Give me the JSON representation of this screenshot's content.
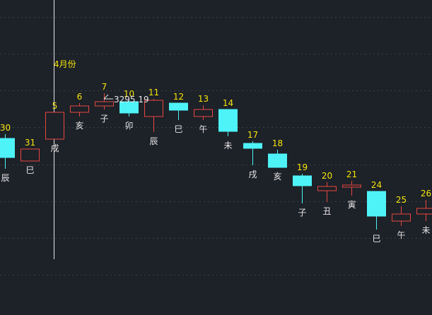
{
  "colors": {
    "background": "#1d2128",
    "up": "#e8473f",
    "down": "#4df3f7",
    "date_label": "#f5e50a",
    "branch_label": "#e6e6e6",
    "marker_line": "#e6e6e6",
    "grid": "#3a4048"
  },
  "annotation": {
    "month_text": "4月份",
    "price_text": "3295.19"
  },
  "chart_data": {
    "type": "candlestick",
    "grid": true,
    "ylim": [
      0,
      446
    ],
    "candles": [
      {
        "date": "30",
        "branch": "辰",
        "open": 250,
        "close": 223,
        "high": 256,
        "low": 207
      },
      {
        "date": "31",
        "branch": "巳",
        "open": 218,
        "close": 235,
        "high": 235,
        "low": 218
      },
      {
        "date": "5",
        "branch": "戌",
        "open": 249,
        "close": 287,
        "high": 287,
        "low": 249
      },
      {
        "date": "6",
        "branch": "亥",
        "open": 287,
        "close": 296,
        "high": 300,
        "low": 281
      },
      {
        "date": "7",
        "branch": "子",
        "open": 296,
        "close": 302,
        "high": 314,
        "low": 291
      },
      {
        "date": "10",
        "branch": "卯",
        "open": 302,
        "close": 286,
        "high": 304,
        "low": 281
      },
      {
        "date": "11",
        "branch": "辰",
        "open": 281,
        "close": 304,
        "high": 306,
        "low": 259
      },
      {
        "date": "12",
        "branch": "巳",
        "open": 300,
        "close": 290,
        "high": 300,
        "low": 276
      },
      {
        "date": "13",
        "branch": "午",
        "open": 281,
        "close": 291,
        "high": 297,
        "low": 276
      },
      {
        "date": "14",
        "branch": "未",
        "open": 291,
        "close": 260,
        "high": 291,
        "low": 253
      },
      {
        "date": "17",
        "branch": "戌",
        "open": 243,
        "close": 236,
        "high": 246,
        "low": 212
      },
      {
        "date": "18",
        "branch": "亥",
        "open": 228,
        "close": 209,
        "high": 234,
        "low": 209
      },
      {
        "date": "19",
        "branch": "子",
        "open": 197,
        "close": 183,
        "high": 200,
        "low": 158
      },
      {
        "date": "20",
        "branch": "丑",
        "open": 176,
        "close": 182,
        "high": 188,
        "low": 160
      },
      {
        "date": "21",
        "branch": "寅",
        "open": 181,
        "close": 184,
        "high": 190,
        "low": 169
      },
      {
        "date": "24",
        "branch": "巳",
        "open": 175,
        "close": 140,
        "high": 175,
        "low": 121
      },
      {
        "date": "25",
        "branch": "午",
        "open": 133,
        "close": 143,
        "high": 154,
        "low": 126
      },
      {
        "date": "26",
        "branch": "未",
        "open": 143,
        "close": 151,
        "high": 163,
        "low": 133
      }
    ]
  }
}
